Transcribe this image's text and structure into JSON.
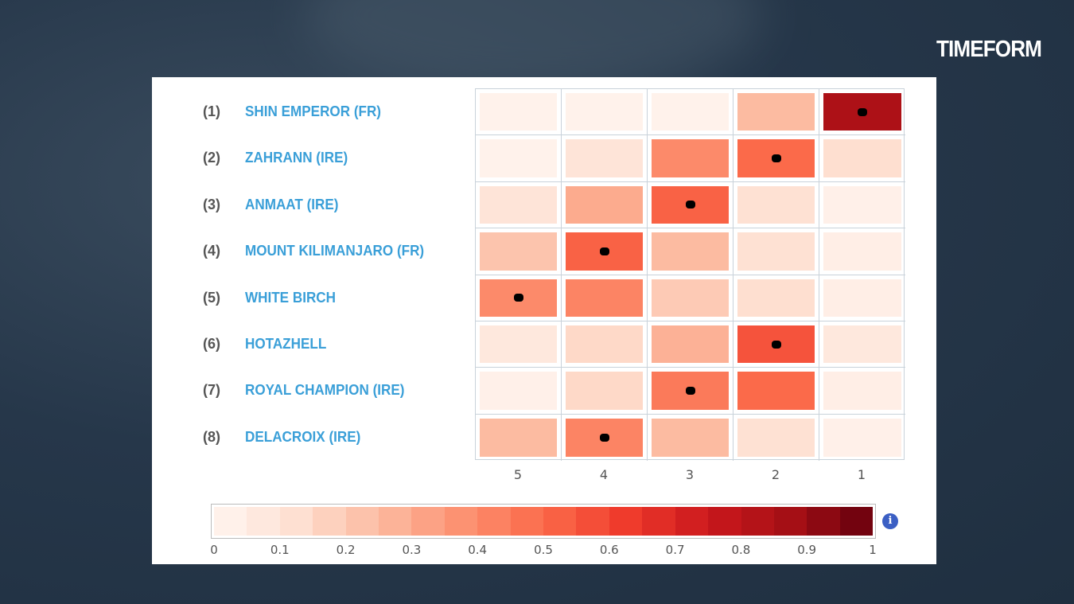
{
  "brand": "TIMEFORM",
  "chart_data": {
    "type": "heatmap",
    "rows": [
      {
        "number": "(1)",
        "name": "SHIN EMPEROR (FR)"
      },
      {
        "number": "(2)",
        "name": "ZAHRANN (IRE)"
      },
      {
        "number": "(3)",
        "name": "ANMAAT (IRE)"
      },
      {
        "number": "(4)",
        "name": "MOUNT KILIMANJARO (FR)"
      },
      {
        "number": "(5)",
        "name": "WHITE BIRCH"
      },
      {
        "number": "(6)",
        "name": "HOTAZHELL"
      },
      {
        "number": "(7)",
        "name": "ROYAL CHAMPION (IRE)"
      },
      {
        "number": "(8)",
        "name": "DELACROIX (IRE)"
      }
    ],
    "columns": [
      "5",
      "4",
      "3",
      "2",
      "1"
    ],
    "values": [
      [
        0.02,
        0.02,
        0.02,
        0.25,
        0.85
      ],
      [
        0.02,
        0.1,
        0.4,
        0.5,
        0.13
      ],
      [
        0.1,
        0.3,
        0.52,
        0.12,
        0.03
      ],
      [
        0.22,
        0.52,
        0.25,
        0.12,
        0.04
      ],
      [
        0.4,
        0.42,
        0.2,
        0.13,
        0.04
      ],
      [
        0.08,
        0.15,
        0.28,
        0.56,
        0.08
      ],
      [
        0.03,
        0.15,
        0.45,
        0.5,
        0.04
      ],
      [
        0.25,
        0.42,
        0.25,
        0.12,
        0.03
      ]
    ],
    "marked_column": [
      "1",
      "2",
      "3",
      "4",
      "5",
      "2",
      "3",
      "4"
    ],
    "colorscale": {
      "range": [
        0,
        1
      ],
      "ticks": [
        "0",
        "0.1",
        "0.2",
        "0.3",
        "0.4",
        "0.5",
        "0.6",
        "0.7",
        "0.8",
        "0.9",
        "1"
      ],
      "steps": 20,
      "colors": [
        "#fff5f0",
        "#fee0d2",
        "#fcbba1",
        "#fc9272",
        "#fb6a4a",
        "#ef3b2c",
        "#cb181d",
        "#a50f15",
        "#67000d"
      ]
    },
    "info_icon": "i"
  }
}
